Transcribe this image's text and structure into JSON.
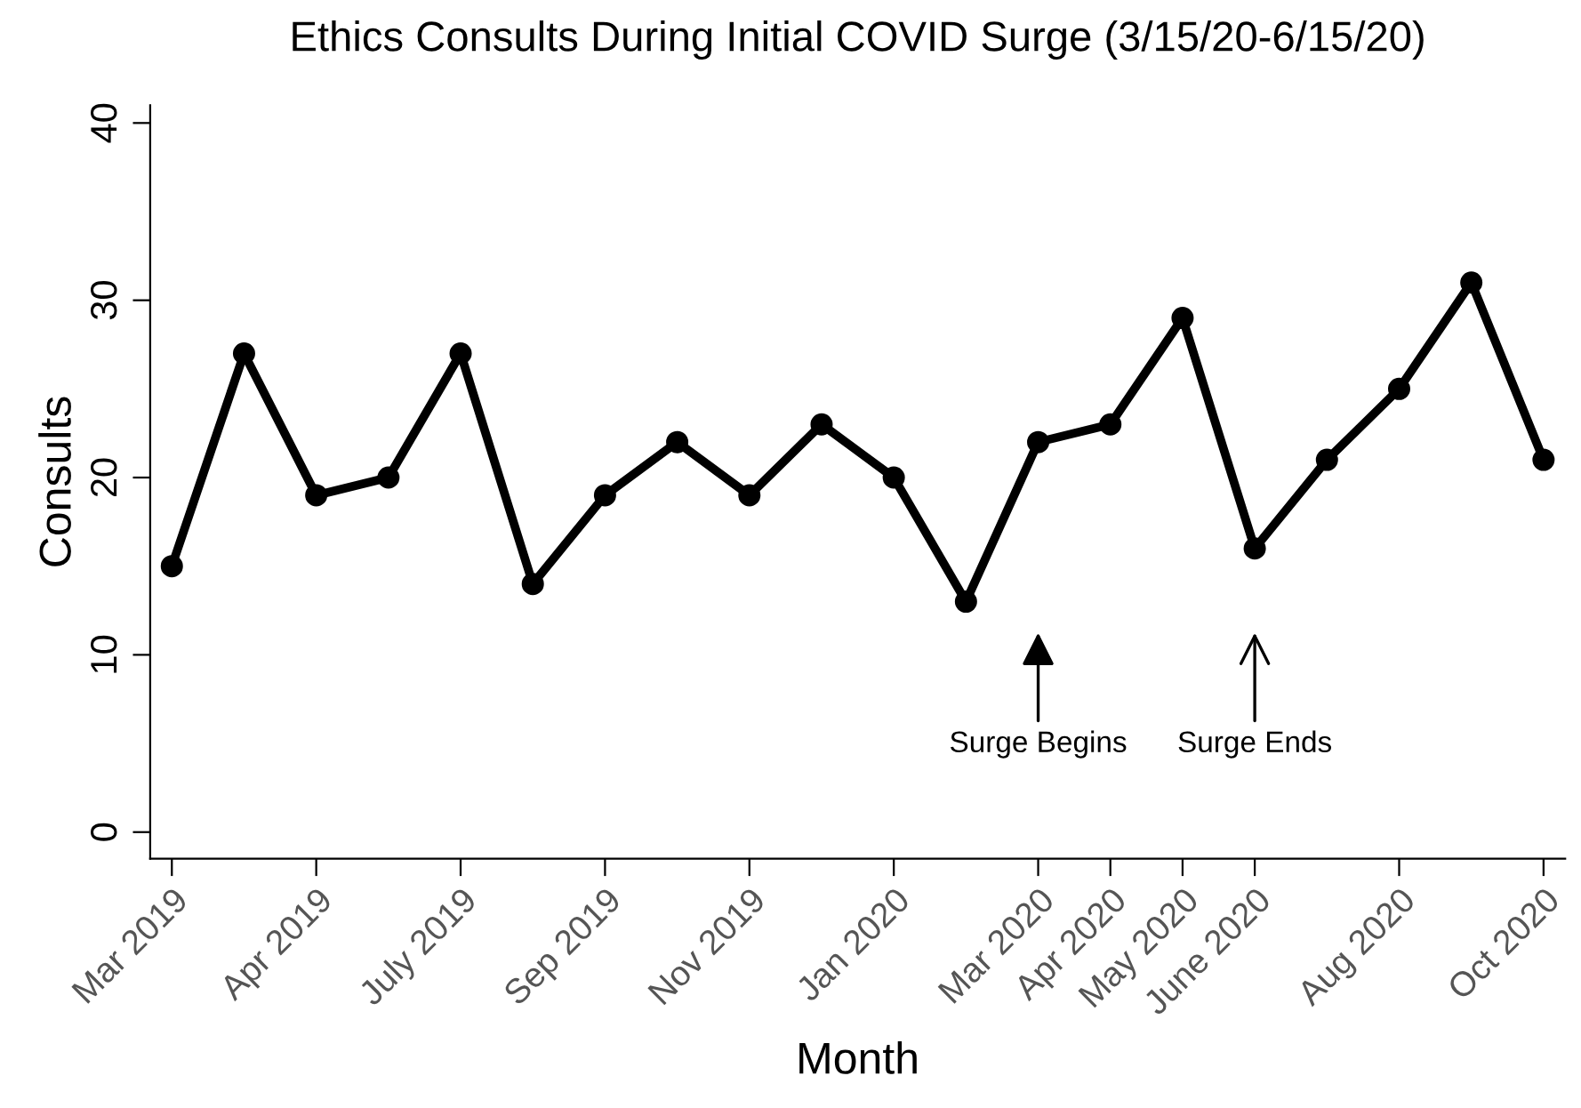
{
  "chart_data": {
    "type": "line",
    "title": "Ethics Consults During Initial COVID Surge (3/15/20-6/15/20)",
    "xlabel": "Month",
    "ylabel": "Consults",
    "categories": [
      "Mar 2019",
      null,
      "Apr 2019",
      null,
      "July 2019",
      null,
      "Sep 2019",
      null,
      "Nov 2019",
      null,
      "Jan 2020",
      null,
      "Mar 2020",
      "Apr 2020",
      "May 2020",
      "June 2020",
      null,
      "Aug 2020",
      null,
      "Oct 2020"
    ],
    "series": [
      {
        "color": "#000000",
        "values": [
          15,
          27,
          19,
          20,
          27,
          14,
          19,
          22,
          19,
          23,
          20,
          13,
          22,
          23,
          29,
          16,
          21,
          25,
          31,
          21
        ]
      }
    ],
    "ylim": [
      -1.5,
      41
    ],
    "yticks": [
      0,
      10,
      20,
      30,
      40
    ],
    "marker": "circle",
    "line_style": "solid",
    "grid": false,
    "legend": false,
    "annotations": [
      "Surge Begins",
      "Surge Ends"
    ]
  }
}
